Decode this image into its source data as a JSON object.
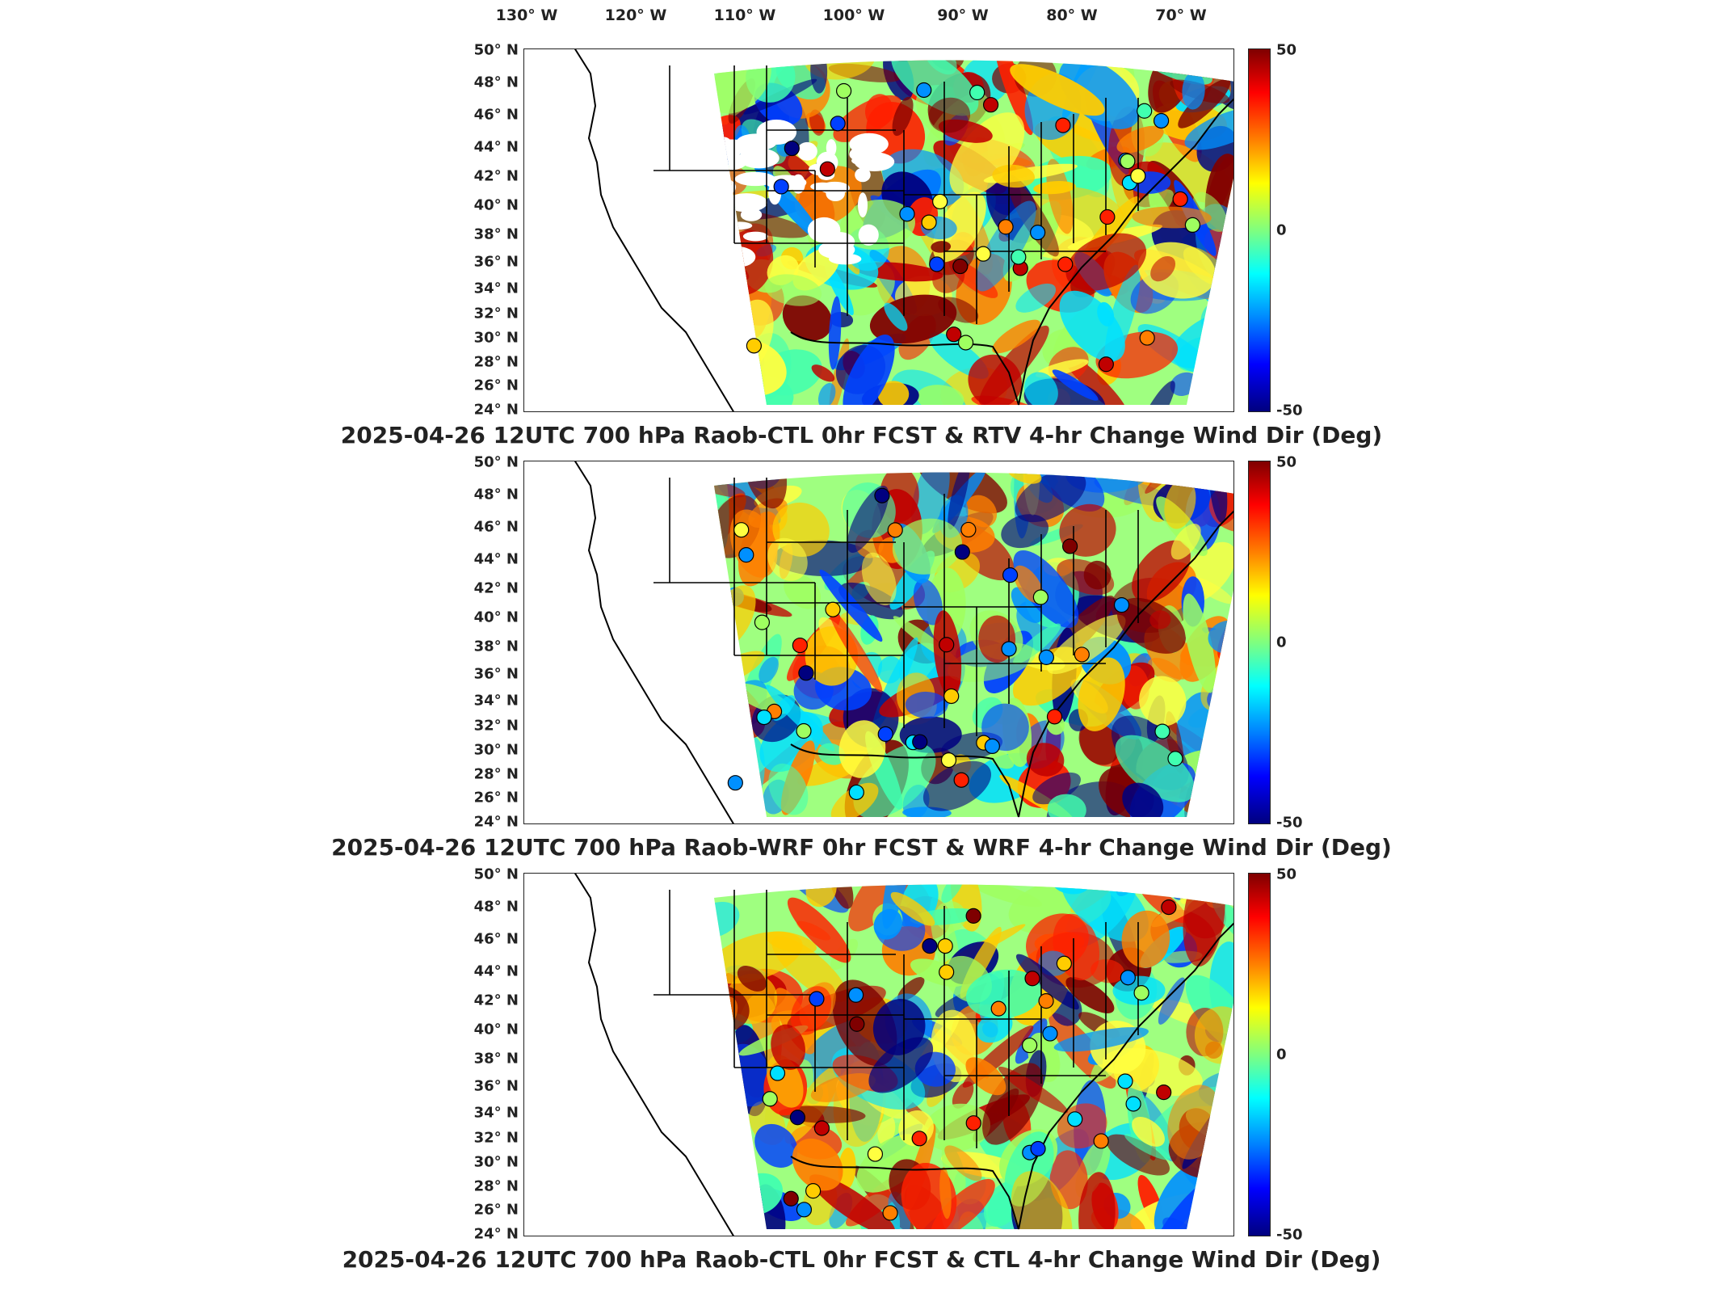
{
  "longitude_labels": [
    "130° W",
    "120° W",
    "110° W",
    "100° W",
    "90° W",
    "80° W",
    "70° W"
  ],
  "latitude_labels": [
    "50° N",
    "48° N",
    "46° N",
    "44° N",
    "42° N",
    "40° N",
    "38° N",
    "36° N",
    "34° N",
    "32° N",
    "30° N",
    "28° N",
    "26° N",
    "24° N"
  ],
  "colorbar": {
    "max_label": "50",
    "mid_label": "0",
    "min_label": "-50",
    "colormap": [
      "#7f0000",
      "#ff0000",
      "#ff7f00",
      "#ffff00",
      "#7fff7f",
      "#00ffff",
      "#007fff",
      "#0000ff",
      "#00007f"
    ]
  },
  "panels": [
    {
      "title": "2025-04-26 12UTC 700 hPa Raob-CTL 0hr FCST & RTV 4-hr Change Wind Dir (Deg)"
    },
    {
      "title": "2025-04-26 12UTC 700 hPa Raob-WRF 0hr FCST & WRF 4-hr Change Wind Dir (Deg)"
    },
    {
      "title": "2025-04-26 12UTC 700 hPa Raob-CTL 0hr FCST & CTL 4-hr Change Wind Dir (Deg)"
    }
  ],
  "map_extent": {
    "lon_min": -130,
    "lon_max": -65,
    "lat_min": 24,
    "lat_max": 50
  }
}
